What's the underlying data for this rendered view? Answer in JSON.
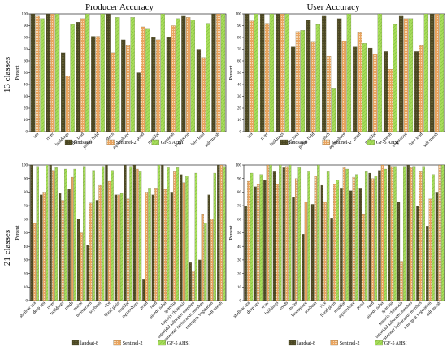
{
  "page": {
    "col_titles": [
      "Producer Accuracy",
      "User Accuracy"
    ],
    "row_labels": [
      "13 classes",
      "21 classes"
    ]
  },
  "legend": {
    "names": [
      "landsat-8",
      "Sentinel-2",
      "GF-5 AHSI"
    ],
    "colors": [
      "#4b4724",
      "#e9a460",
      "#a7dd5b"
    ]
  },
  "chart_data": [
    {
      "type": "bar",
      "title": "Producer Accuracy",
      "ylabel": "Percent",
      "ylim": [
        0,
        100
      ],
      "yticks": [
        0,
        10,
        20,
        30,
        40,
        50,
        60,
        70,
        80,
        90,
        100
      ],
      "grid": false,
      "legend_position": "bottom",
      "categories": [
        "sea",
        "river",
        "buildings",
        "dry land",
        "paddy field",
        "ditch",
        "aquaculture",
        "pond",
        "mudflat",
        "marsh",
        "vegetation",
        "bare land",
        "salt marsh"
      ],
      "series": [
        {
          "name": "landsat-8",
          "values": [
            100,
            100,
            67,
            93,
            81,
            100,
            78,
            50,
            80,
            80,
            98,
            70,
            100
          ]
        },
        {
          "name": "Sentinel-2",
          "values": [
            98,
            100,
            47,
            96,
            81,
            67,
            73,
            89,
            78,
            90,
            97,
            63,
            100
          ]
        },
        {
          "name": "GF-5 AHSI",
          "values": [
            96,
            100,
            91,
            100,
            100,
            97,
            97,
            87,
            100,
            96,
            95,
            92,
            100
          ]
        }
      ]
    },
    {
      "type": "bar",
      "title": "User Accuracy",
      "ylabel": "Percent",
      "ylim": [
        0,
        100
      ],
      "yticks": [
        0,
        10,
        20,
        30,
        40,
        50,
        60,
        70,
        80,
        90,
        100
      ],
      "grid": false,
      "legend_position": "bottom",
      "categories": [
        "sea",
        "river",
        "buildings",
        "dry land",
        "paddy field",
        "ditch",
        "aquaculture",
        "pond",
        "mudflat",
        "marsh",
        "vegetation",
        "bare land",
        "salt marsh"
      ],
      "series": [
        {
          "name": "landsat-8",
          "values": [
            100,
            100,
            100,
            72,
            95,
            98,
            96,
            72,
            71,
            68,
            98,
            68,
            100
          ]
        },
        {
          "name": "Sentinel-2",
          "values": [
            94,
            92,
            100,
            85,
            76,
            64,
            77,
            84,
            66,
            53,
            96,
            73,
            100
          ]
        },
        {
          "name": "GF-5 AHSI",
          "values": [
            100,
            100,
            100,
            86,
            91,
            37,
            100,
            75,
            100,
            91,
            96,
            100,
            100
          ]
        }
      ]
    },
    {
      "type": "bar",
      "title": "",
      "ylabel": "Percent",
      "ylim": [
        0,
        100
      ],
      "yticks": [
        0,
        10,
        20,
        30,
        40,
        50,
        60,
        70,
        80,
        90,
        100
      ],
      "grid": false,
      "legend_position": "bottom",
      "categories": [
        "shallow sea",
        "deep sea",
        "river",
        "buildings",
        "roads",
        "maize",
        "broomcorn",
        "soybean",
        "rice",
        "flood plain",
        "mudflat",
        "aquaculture",
        "pond",
        "reed",
        "suaeda salsa",
        "spartina",
        "tamarix chinensis",
        "intertidal saltwater marshes",
        "freshwater herbaceous marshes",
        "emergent vegetation",
        "salt marsh"
      ],
      "series": [
        {
          "name": "landsat-8",
          "values": [
            100,
            78,
            100,
            79,
            82,
            60,
            41,
            74,
            100,
            78,
            100,
            100,
            16,
            78,
            100,
            80,
            93,
            28,
            30,
            78,
            100
          ]
        },
        {
          "name": "Sentinel-2",
          "values": [
            57,
            80,
            96,
            74,
            91,
            50,
            72,
            85,
            88,
            78,
            75,
            97,
            80,
            83,
            82,
            95,
            87,
            22,
            64,
            60,
            100
          ]
        },
        {
          "name": "GF-5 AHSI",
          "values": [
            99,
            100,
            98,
            97,
            97,
            99,
            96,
            99,
            96,
            79,
            99,
            95,
            83,
            100,
            98,
            98,
            92,
            94,
            57,
            94,
            99
          ]
        }
      ]
    },
    {
      "type": "bar",
      "title": "",
      "ylabel": "Percent",
      "ylim": [
        0,
        100
      ],
      "yticks": [
        0,
        10,
        20,
        30,
        40,
        50,
        60,
        70,
        80,
        90,
        100
      ],
      "grid": false,
      "legend_position": "bottom",
      "categories": [
        "shallow sea",
        "deep sea",
        "river",
        "buildings",
        "roads",
        "maize",
        "broomcorn",
        "soybean",
        "rice",
        "flood plain",
        "mudflat",
        "aquaculture",
        "pond",
        "reed",
        "suaeda salsa",
        "spartina",
        "tamarix chinensis",
        "intertidal saltwater marshes",
        "freshwater herbaceous marshes",
        "emergent vegetation",
        "salt marsh"
      ],
      "series": [
        {
          "name": "landsat-8",
          "values": [
            70,
            84,
            89,
            95,
            98,
            76,
            49,
            71,
            85,
            61,
            83,
            81,
            83,
            94,
            96,
            100,
            73,
            100,
            70,
            55,
            80
          ]
        },
        {
          "name": "Sentinel-2",
          "values": [
            88,
            86,
            100,
            86,
            99,
            90,
            73,
            92,
            73,
            86,
            98,
            91,
            64,
            90,
            100,
            99,
            29,
            98,
            95,
            75,
            100
          ]
        },
        {
          "name": "GF-5 AHSI",
          "values": [
            94,
            93,
            100,
            100,
            100,
            98,
            95,
            100,
            95,
            89,
            97,
            93,
            95,
            92,
            97,
            99,
            99,
            99,
            99,
            93,
            100
          ]
        }
      ]
    }
  ]
}
